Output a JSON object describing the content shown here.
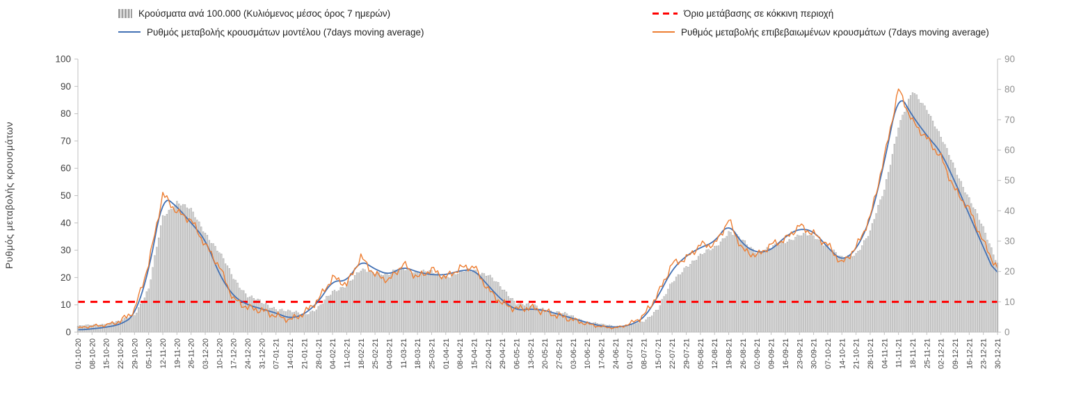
{
  "colors": {
    "bars_fill": "#d4d4d4",
    "bars_stroke": "#9f9f9f",
    "model_line": "#4170b4",
    "confirmed_line": "#ed7d31",
    "threshold": "#ff0000",
    "axis": "#bfbfbf",
    "left_tick_text": "#404040",
    "right_tick_text": "#8f8f8f",
    "x_tick_text": "#404040"
  },
  "chart_data": {
    "type": "bar",
    "overlay": "line",
    "legend_position": "top",
    "grid": false,
    "x_tick_interval_days": 7,
    "x_labels": [
      "01-10-20",
      "08-10-20",
      "15-10-20",
      "22-10-20",
      "29-10-20",
      "05-11-20",
      "12-11-20",
      "19-11-20",
      "26-11-20",
      "03-12-20",
      "10-12-20",
      "17-12-20",
      "24-12-20",
      "31-12-20",
      "07-01-21",
      "14-01-21",
      "21-01-21",
      "28-01-21",
      "04-02-21",
      "11-02-21",
      "18-02-21",
      "25-02-21",
      "04-03-21",
      "11-03-21",
      "18-03-21",
      "25-03-21",
      "01-04-21",
      "08-04-21",
      "15-04-21",
      "22-04-21",
      "29-04-21",
      "06-05-21",
      "13-05-21",
      "20-05-21",
      "27-05-21",
      "03-06-21",
      "10-06-21",
      "17-06-21",
      "24-06-21",
      "01-07-21",
      "08-07-21",
      "15-07-21",
      "22-07-21",
      "29-07-21",
      "05-08-21",
      "12-08-21",
      "19-08-21",
      "26-08-21",
      "02-09-21",
      "09-09-21",
      "16-09-21",
      "23-09-21",
      "30-09-21",
      "07-10-21",
      "14-10-21",
      "21-10-21",
      "28-10-21",
      "04-11-21",
      "11-11-21",
      "18-11-21",
      "25-11-21",
      "02-12-21",
      "09-12-21",
      "16-12-21",
      "23-12-21",
      "30-12-21"
    ],
    "bars": {
      "name": "Κρούσματα ανά 100.000 (Κυλιόμενος μέσος όρος 7 ημερών)",
      "axis": "right",
      "weekly_values": [
        2,
        2.3,
        2.8,
        3.5,
        6,
        14,
        38,
        43,
        40,
        33,
        26,
        18,
        12,
        9.5,
        8,
        6.5,
        6,
        8,
        13,
        16,
        20,
        20,
        19,
        21,
        20,
        19.5,
        18.5,
        19.5,
        20.5,
        19,
        14,
        10,
        8.5,
        7.5,
        6.5,
        5,
        3.5,
        2.5,
        2,
        2.2,
        3.5,
        8,
        16,
        22,
        25,
        28,
        33,
        30,
        26.5,
        27.5,
        30,
        32,
        31.5,
        28.5,
        24,
        26,
        33,
        47,
        68,
        79,
        74,
        64,
        54,
        44,
        34,
        23
      ]
    },
    "series": [
      {
        "id": "model",
        "name": "Ρυθμός μεταβολής κρουσμάτων μοντέλου (7days moving average)",
        "axis": "left",
        "weekly_values": [
          0.8,
          1.2,
          1.8,
          2.8,
          6,
          22,
          50,
          46,
          40,
          34,
          21,
          13,
          10,
          8.5,
          7,
          5,
          6.5,
          11,
          19,
          18.5,
          26.5,
          23,
          21,
          24,
          22,
          21,
          21,
          22.5,
          23,
          17,
          11.5,
          8,
          8.5,
          8,
          6.5,
          5,
          3.5,
          2.2,
          1.8,
          2.5,
          5,
          13,
          23,
          28,
          31,
          33,
          40,
          32,
          29,
          30,
          35,
          38,
          37,
          31,
          26,
          30,
          41,
          62,
          88,
          79,
          72,
          66,
          55,
          43,
          31,
          19.5
        ]
      },
      {
        "id": "confirmed",
        "name": "Ρυθμός μεταβολής επιβεβαιωμένων κρουσμάτων (7days moving average)",
        "axis": "left",
        "weekly_values": [
          1.5,
          2.2,
          2.6,
          4,
          8,
          25,
          50.5,
          44,
          41,
          32,
          24,
          12,
          9,
          8,
          6,
          4.5,
          7,
          12,
          20,
          17.5,
          27.5,
          21,
          19,
          25,
          20,
          23,
          20,
          23.5,
          24,
          15.5,
          10.5,
          8.5,
          9,
          7.5,
          6,
          4.5,
          3,
          2,
          1.5,
          3,
          6,
          14,
          25,
          27,
          32,
          32,
          41,
          30,
          28,
          32,
          34,
          39,
          36,
          32,
          25,
          31,
          42,
          64,
          89,
          77,
          71,
          64,
          52,
          45,
          33,
          23
        ]
      }
    ],
    "threshold": {
      "name": "Όριο μετάβασης σε κόκκινη περιοχή",
      "axis": "right",
      "value": 10
    },
    "left_axis": {
      "title": "Ρυθμός μεταβολής κρουσμάτων",
      "min": 0,
      "max": 100,
      "step": 10
    },
    "right_axis": {
      "min": 0,
      "max": 90,
      "step": 10
    }
  }
}
